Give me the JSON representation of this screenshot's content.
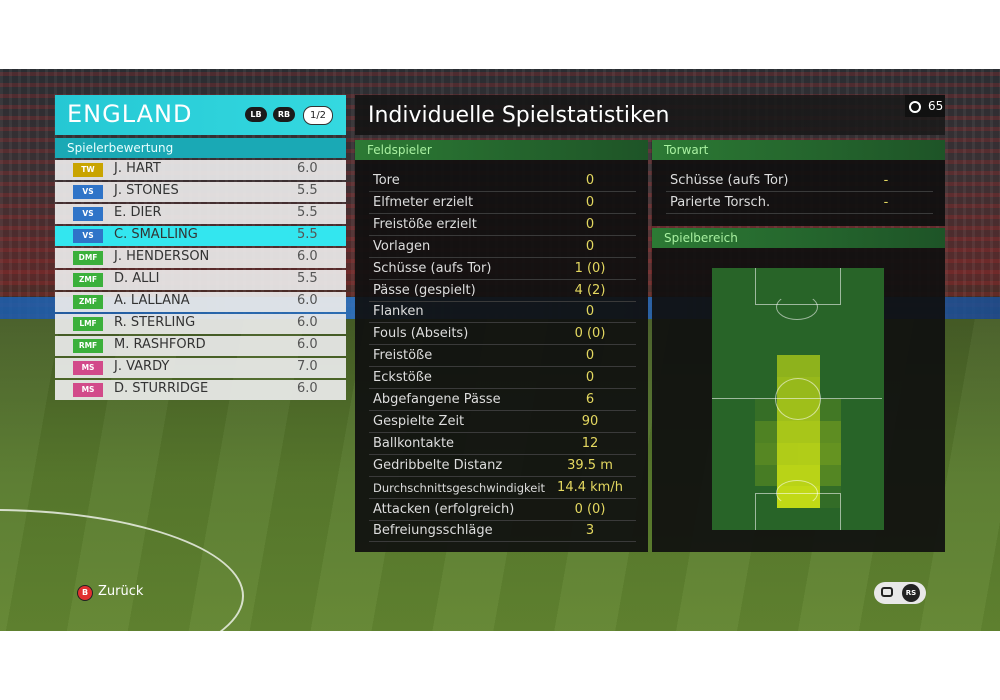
{
  "team": {
    "name": "ENGLAND",
    "lb": "LB",
    "rb": "RB",
    "page": "1/2"
  },
  "rating_section": "Spielerbewertung",
  "players": [
    {
      "pos": "TW",
      "name": "J. HART",
      "rating": "6.0",
      "color": "#c9a400"
    },
    {
      "pos": "VS",
      "name": "J. STONES",
      "rating": "5.5",
      "color": "#2f74c8"
    },
    {
      "pos": "VS",
      "name": "E. DIER",
      "rating": "5.5",
      "color": "#2f74c8"
    },
    {
      "pos": "VS",
      "name": "C. SMALLING",
      "rating": "5.5",
      "color": "#2f74c8"
    },
    {
      "pos": "DMF",
      "name": "J. HENDERSON",
      "rating": "6.0",
      "color": "#3bb03b"
    },
    {
      "pos": "ZMF",
      "name": "D. ALLI",
      "rating": "5.5",
      "color": "#3bb03b"
    },
    {
      "pos": "ZMF",
      "name": "A. LALLANA",
      "rating": "6.0",
      "color": "#3bb03b"
    },
    {
      "pos": "LMF",
      "name": "R. STERLING",
      "rating": "6.0",
      "color": "#3bb03b"
    },
    {
      "pos": "RMF",
      "name": "M. RASHFORD",
      "rating": "6.0",
      "color": "#3bb03b"
    },
    {
      "pos": "MS",
      "name": "J. VARDY",
      "rating": "7.0",
      "color": "#d24a8a"
    },
    {
      "pos": "MS",
      "name": "D. STURRIDGE",
      "rating": "6.0",
      "color": "#d24a8a"
    }
  ],
  "selected_index": 3,
  "title": "Individuelle Spielstatistiken",
  "timer": "65",
  "field_section": "Feldspieler",
  "stats": [
    {
      "label": "Tore",
      "value": "0"
    },
    {
      "label": "Elfmeter erzielt",
      "value": "0"
    },
    {
      "label": "Freistöße erzielt",
      "value": "0"
    },
    {
      "label": "Vorlagen",
      "value": "0"
    },
    {
      "label": "Schüsse (aufs Tor)",
      "value": "1 (0)"
    },
    {
      "label": "Pässe (gespielt)",
      "value": "4 (2)"
    },
    {
      "label": "Flanken",
      "value": "0"
    },
    {
      "label": "Fouls (Abseits)",
      "value": "0 (0)"
    },
    {
      "label": "Freistöße",
      "value": "0"
    },
    {
      "label": "Eckstöße",
      "value": "0"
    },
    {
      "label": "Abgefangene Pässe",
      "value": "6"
    },
    {
      "label": "Gespielte Zeit",
      "value": "90"
    },
    {
      "label": "Ballkontakte",
      "value": "12"
    },
    {
      "label": "Gedribbelte Distanz",
      "value": "39.5 m"
    },
    {
      "label": "Durchschnittsgeschwindigkeit",
      "value": "14.4 km/h"
    },
    {
      "label": "Attacken (erfolgreich)",
      "value": "0 (0)"
    },
    {
      "label": "Befreiungsschläge",
      "value": "3"
    }
  ],
  "keeper_section": "Torwart",
  "keeper_stats": [
    {
      "label": "Schüsse (aufs Tor)",
      "value": "-"
    },
    {
      "label": "Parierte Torsch.",
      "value": "-"
    }
  ],
  "area_section": "Spielbereich",
  "back_button": {
    "key": "B",
    "label": "Zurück"
  },
  "rs_button": {
    "key": "RS"
  },
  "colors": {
    "accent": "#2fd3de",
    "value": "#e4d860",
    "green_header": "#2c7a34"
  }
}
